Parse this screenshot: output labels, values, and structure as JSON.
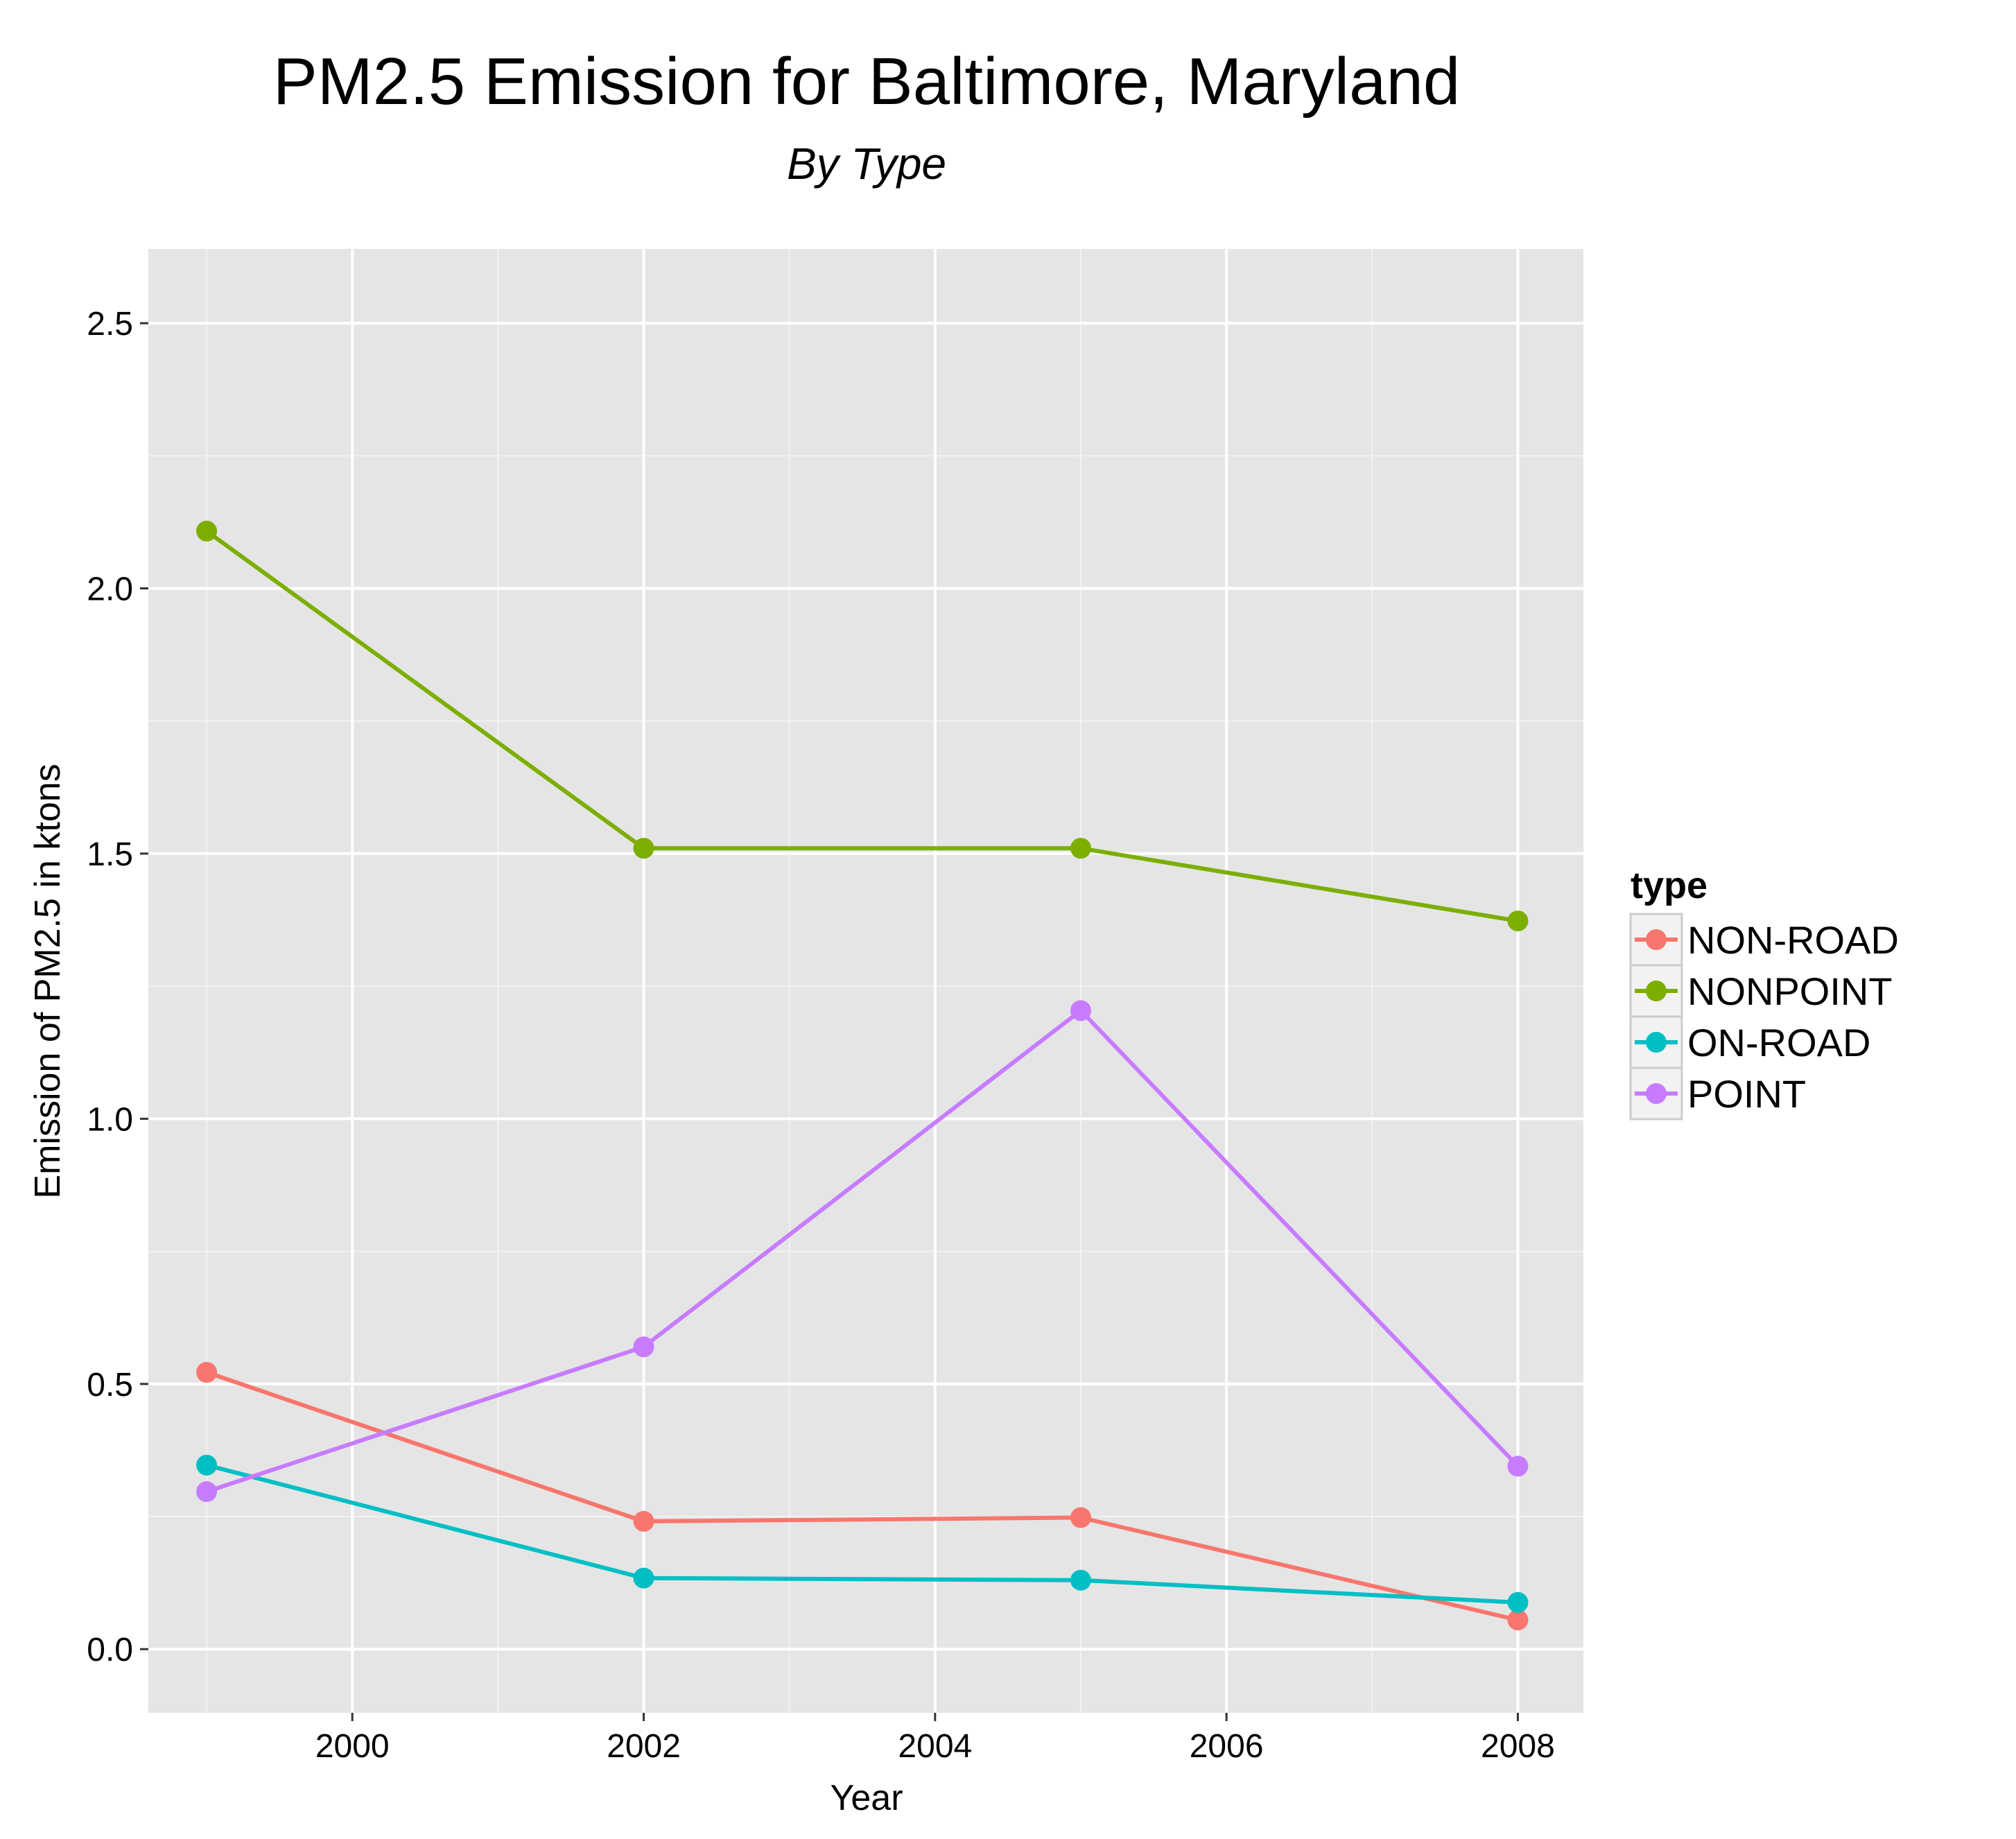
{
  "chart_data": {
    "type": "line",
    "title": "PM2.5 Emission for Baltimore, Maryland",
    "subtitle": "By Type",
    "xlabel": "Year",
    "ylabel": "Emission of PM2.5 in ktons",
    "x": [
      1999,
      2002,
      2005,
      2008
    ],
    "xlim": [
      1998.6,
      2008.45
    ],
    "ylim": [
      -0.12,
      2.64
    ],
    "xticks": [
      "2000",
      "2002",
      "2004",
      "2006",
      "2008"
    ],
    "yticks": [
      "0.0",
      "0.5",
      "1.0",
      "1.5",
      "2.0",
      "2.5"
    ],
    "grid": true,
    "legend_position": "right",
    "legend_title": "type",
    "series": [
      {
        "name": "NON-ROAD",
        "color": "#F8766D",
        "values": [
          0.522,
          0.241,
          0.248,
          0.055
        ]
      },
      {
        "name": "NONPOINT",
        "color": "#7CAE00",
        "values": [
          2.108,
          1.51,
          1.51,
          1.373
        ]
      },
      {
        "name": "ON-ROAD",
        "color": "#00BFC4",
        "values": [
          0.347,
          0.134,
          0.13,
          0.088
        ]
      },
      {
        "name": "POINT",
        "color": "#C77CFF",
        "values": [
          0.297,
          0.57,
          1.204,
          0.345
        ]
      }
    ]
  }
}
